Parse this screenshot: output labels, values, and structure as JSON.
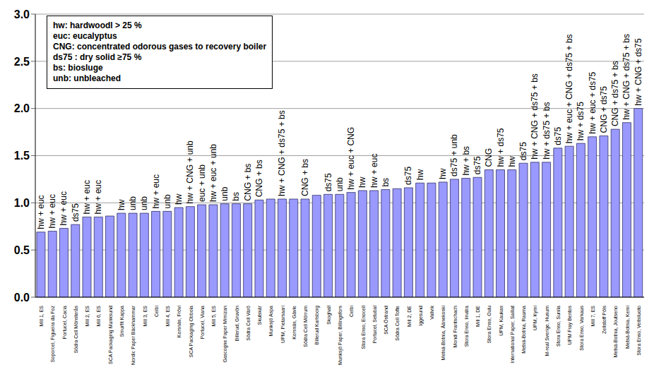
{
  "chart_data": {
    "type": "bar",
    "categories": [
      "Mill 1, ES",
      "Soporcel, Figueira da Foz",
      "Portucel, Cacia",
      "Södra Cell Mönsterås",
      "Mill 2, ES",
      "Mill 6, ES",
      "SCA Packaging Munksund",
      "Smurfit Kappa",
      "Nordic Paper Bäckhammar",
      "Mill 3, ES",
      "Celbi",
      "Mill 4, ES",
      "Korsnäs, Frövi",
      "SCA Packaging Obbola",
      "Portucel, Viana",
      "Mill 5, ES",
      "Gascogne Paper Mimizan",
      "Billerud, Gruvön",
      "Södra Cell Värö",
      "Skutskär",
      "Munksjö Aspa",
      "UPM, Pietarsaari",
      "Korsnäs, Gävle",
      "Södra Cell Mörrum",
      "Billerud Karlsborg",
      "Skoghall",
      "Munksjö Paper, Billingsfors",
      "Celbi",
      "Stora Enso, Enocell",
      "Portucel, Setubal",
      "SCA Östrand",
      "Södra Cell Tofte",
      "Mill 2, DE",
      "Iggesund",
      "Vallvik",
      "Metsä-Botnia, Äänekoski",
      "Mondi Frantschach",
      "Stora Enso, Imatra",
      "Mill 1, DE",
      "Stora Enso, Oulu",
      "UPM, Kaukas",
      "International Paper, Saillat",
      "Metsä-Botnia, Rauma",
      "UPM, Kymi",
      "M-real Sverige, Husum",
      "Stora Enso, Sunila",
      "UPM Fray Bentos",
      "Stora Enso, Varkaus",
      "Mill 7, ES",
      "Zellstoff Pöls",
      "Metsä-Botnia, Joutseno",
      "Metsä-Botnia, Kemi",
      "Stora Enso, Veitsiluoto"
    ],
    "values": [
      0.69,
      0.7,
      0.73,
      0.77,
      0.85,
      0.85,
      0.86,
      0.89,
      0.89,
      0.89,
      0.91,
      0.91,
      0.95,
      0.96,
      0.98,
      0.98,
      0.99,
      0.99,
      0.99,
      1.03,
      1.04,
      1.04,
      1.04,
      1.04,
      1.08,
      1.09,
      1.09,
      1.11,
      1.13,
      1.13,
      1.14,
      1.15,
      1.16,
      1.21,
      1.21,
      1.22,
      1.25,
      1.26,
      1.27,
      1.35,
      1.35,
      1.35,
      1.42,
      1.43,
      1.43,
      1.58,
      1.6,
      1.63,
      1.7,
      1.71,
      1.78,
      1.85,
      2.0
    ],
    "bar_labels": [
      "hw + euc",
      "hw + euc",
      "hw + euc",
      "ds75",
      "hw + euc",
      "hw + euc",
      null,
      "hw",
      "unb",
      "unb",
      "hw + euc",
      "unb",
      "hw",
      "hw + CNG + unb",
      "euc + unb",
      "hw + euc + unb",
      "unb",
      "bs",
      "CNG + bs",
      "CNG + bs",
      null,
      "hw + CNG + ds75 + bs",
      null,
      "CNG + bs",
      null,
      "ds75",
      "unb",
      "hw + euc + CNG",
      "hw",
      "hw + euc",
      "bs",
      null,
      "ds75",
      "hw",
      null,
      "hw",
      "ds75 + unb",
      "hw + bs",
      "ds75",
      "CNG",
      "hw + ds75",
      "hw",
      "ds75",
      "hw + CNG + ds75 + bs",
      "hw + ds75 + bs",
      "ds75",
      "hw + euc + CNG + ds75 + bs",
      "hw + ds75",
      "hw + euc + ds75",
      "CNG + ds75",
      "CNG + ds75 + bs",
      "hw + CNG + ds75 + bs",
      "hw + CNG + ds75"
    ],
    "annotations": [
      "hw: hardwoodl > 25 %",
      "euc: eucalyptus",
      "CNG: concentrated odorous gases to recovery boiler",
      "ds75 : dry solid ≥75 %",
      "bs: biosluge",
      "unb: unbleached"
    ],
    "color": "#9999ff",
    "ylim": [
      0,
      3
    ],
    "yticks": [
      {
        "value": 0,
        "label": "0.0"
      },
      {
        "value": 0.5,
        "label": "0.5"
      },
      {
        "value": 1,
        "label": "1.0"
      },
      {
        "value": 1.5,
        "label": "1.5"
      },
      {
        "value": 2,
        "label": "2.0"
      },
      {
        "value": 2.5,
        "label": "2.5"
      },
      {
        "value": 3,
        "label": "3.0"
      }
    ],
    "grid": true
  }
}
